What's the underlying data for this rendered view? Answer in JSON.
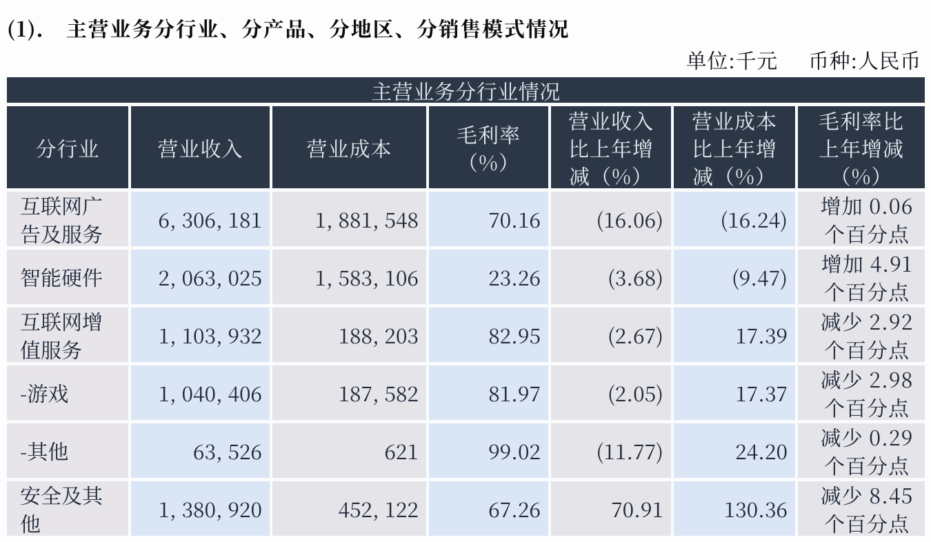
{
  "title": {
    "prefix": "(1)．",
    "text": "主营业务分行业、分产品、分地区、分销售模式情况"
  },
  "unit_note": {
    "unit": "单位:千元",
    "currency": "币种:人民币"
  },
  "table": {
    "banner": "主营业务分行业情况",
    "columns": [
      "分行业",
      "营业收入",
      "营业成本",
      "毛利率\n（%）",
      "营业收入\n比上年增\n减（%）",
      "营业成本\n比上年增\n减（%）",
      "毛利率比\n上年增减\n（%）"
    ],
    "rows": [
      {
        "industry": "互联网广\n告及服务",
        "revenue": "6, 306, 181",
        "cost": "1, 881, 548",
        "gross_margin": "70.16",
        "revenue_yoy": "(16.06)",
        "cost_yoy": "(16.24)",
        "margin_yoy": "增加 0.06\n个百分点"
      },
      {
        "industry": "智能硬件",
        "revenue": "2, 063, 025",
        "cost": "1, 583, 106",
        "gross_margin": "23.26",
        "revenue_yoy": "(3.68)",
        "cost_yoy": "(9.47)",
        "margin_yoy": "增加 4.91\n个百分点"
      },
      {
        "industry": "互联网增\n值服务",
        "revenue": "1, 103, 932",
        "cost": "188, 203",
        "gross_margin": "82.95",
        "revenue_yoy": "(2.67)",
        "cost_yoy": "17.39",
        "margin_yoy": "减少 2.92\n个百分点"
      },
      {
        "industry": "-游戏",
        "revenue": "1, 040, 406",
        "cost": "187, 582",
        "gross_margin": "81.97",
        "revenue_yoy": "(2.05)",
        "cost_yoy": "17.37",
        "margin_yoy": "减少 2.98\n个百分点"
      },
      {
        "industry": "-其他",
        "revenue": "63, 526",
        "cost": "621",
        "gross_margin": "99.02",
        "revenue_yoy": "(11.77)",
        "cost_yoy": "24.20",
        "margin_yoy": "减少 0.29\n个百分点"
      },
      {
        "industry": "安全及其\n他",
        "revenue": "1, 380, 920",
        "cost": "452, 122",
        "gross_margin": "67.26",
        "revenue_yoy": "70.91",
        "cost_yoy": "130.36",
        "margin_yoy": "减少 8.45\n个百分点"
      }
    ]
  },
  "colors": {
    "header_bg": "#2b3746",
    "header_text": "#e5e9ef",
    "cell_blue": "#dae6f5",
    "cell_gray": "#e5e4e8",
    "cell_gray_first": "#e7e5ea",
    "data_text": "#202a3a",
    "title_text": "#0e0e10",
    "page_bg": "#fdfdfe"
  }
}
